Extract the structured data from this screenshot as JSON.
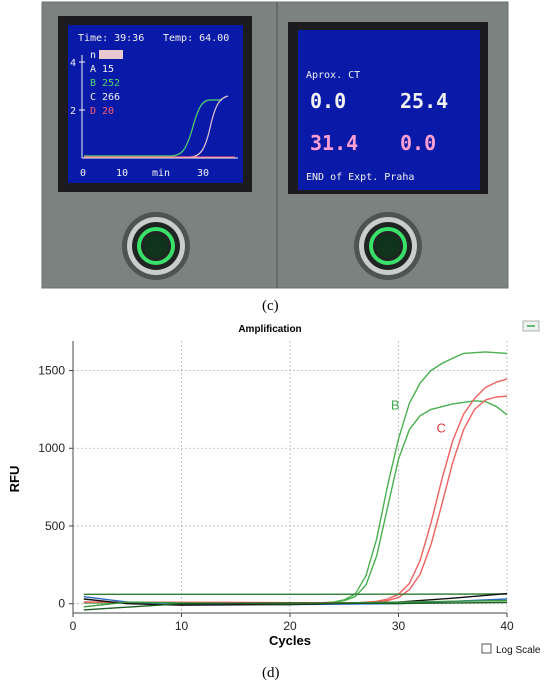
{
  "panel_c": {
    "label": "(c)",
    "left_display": {
      "header_time": "Time: 39:36",
      "header_temp": "Temp: 64.00",
      "y_ticks": [
        "4",
        "2"
      ],
      "x_ticks": [
        "0",
        "10",
        "min",
        "30"
      ],
      "legend": [
        {
          "key": "n",
          "value": "",
          "color": "#f2f2f2"
        },
        {
          "key": "A",
          "value": "15",
          "color": "#f2f2f2"
        },
        {
          "key": "B",
          "value": "252",
          "color": "#4fd86a"
        },
        {
          "key": "C",
          "value": "266",
          "color": "#f2f2f2"
        },
        {
          "key": "D",
          "value": "20",
          "color": "#ff5a6e"
        }
      ]
    },
    "right_display": {
      "title": "Aprox. CT",
      "values": [
        {
          "text": "0.0",
          "color": "#f2f2f2"
        },
        {
          "text": "25.4",
          "color": "#f2f2f2"
        },
        {
          "text": "31.4",
          "color": "#ff9fd2"
        },
        {
          "text": "0.0",
          "color": "#ff9fd2"
        }
      ],
      "footer": "END of Expt. Praha"
    }
  },
  "panel_d": {
    "label": "(d)",
    "log_scale_label": "Log Scale",
    "chart_data": {
      "type": "line",
      "title": "Amplification",
      "xlabel": "Cycles",
      "ylabel": "RFU",
      "xlim": [
        0,
        40
      ],
      "ylim": [
        -60,
        1690
      ],
      "x_ticks": [
        0,
        10,
        20,
        30,
        40
      ],
      "y_ticks": [
        0,
        500,
        1000,
        1500
      ],
      "grid": true,
      "annotations": [
        {
          "text": "B",
          "x": 29.3,
          "y": 1250,
          "color": "#3aa84b"
        },
        {
          "text": "C",
          "x": 33.5,
          "y": 1100,
          "color": "#e0393e"
        }
      ],
      "series": [
        {
          "color": "#49b04e",
          "x": [
            1,
            22,
            24,
            25,
            26,
            27,
            28,
            29,
            30,
            31,
            32,
            33,
            34,
            35,
            36,
            38,
            40
          ],
          "y": [
            5,
            3,
            10,
            25,
            60,
            180,
            420,
            760,
            1060,
            1290,
            1420,
            1500,
            1545,
            1580,
            1610,
            1620,
            1610
          ]
        },
        {
          "color": "#49b04e",
          "x": [
            1,
            22,
            24,
            25,
            26,
            27,
            28,
            29,
            30,
            31,
            32,
            33,
            35,
            37,
            38,
            39,
            40
          ],
          "y": [
            5,
            3,
            8,
            20,
            45,
            120,
            310,
            620,
            930,
            1120,
            1210,
            1250,
            1285,
            1305,
            1300,
            1270,
            1215
          ]
        },
        {
          "color": "#f0605f",
          "x": [
            1,
            26,
            28,
            29,
            30,
            31,
            32,
            33,
            34,
            35,
            36,
            37,
            38,
            39,
            40
          ],
          "y": [
            10,
            5,
            15,
            30,
            60,
            130,
            280,
            520,
            800,
            1050,
            1220,
            1320,
            1390,
            1425,
            1445
          ]
        },
        {
          "color": "#f0605f",
          "x": [
            1,
            26,
            28,
            29,
            30,
            31,
            32,
            33,
            34,
            35,
            36,
            37,
            38,
            39,
            40
          ],
          "y": [
            10,
            5,
            10,
            20,
            40,
            90,
            190,
            380,
            640,
            910,
            1120,
            1250,
            1310,
            1330,
            1335
          ]
        },
        {
          "color": "#2e7d32",
          "x": [
            1,
            10,
            20,
            30,
            40
          ],
          "y": [
            60,
            60,
            60,
            61,
            62
          ]
        },
        {
          "color": "#2b6fbf",
          "x": [
            1,
            5,
            10,
            20,
            30,
            40
          ],
          "y": [
            45,
            10,
            0,
            -5,
            0,
            30
          ]
        },
        {
          "color": "#111111",
          "x": [
            1,
            5,
            10,
            20,
            30,
            35,
            40
          ],
          "y": [
            30,
            0,
            -10,
            -5,
            10,
            35,
            65
          ]
        },
        {
          "color": "#3a9a3d",
          "x": [
            1,
            5,
            10,
            20,
            30,
            40
          ],
          "y": [
            -20,
            10,
            5,
            0,
            10,
            20
          ]
        },
        {
          "color": "#1a5e20",
          "x": [
            1,
            10,
            20,
            30,
            40
          ],
          "y": [
            -40,
            0,
            5,
            2,
            8
          ]
        }
      ]
    }
  }
}
